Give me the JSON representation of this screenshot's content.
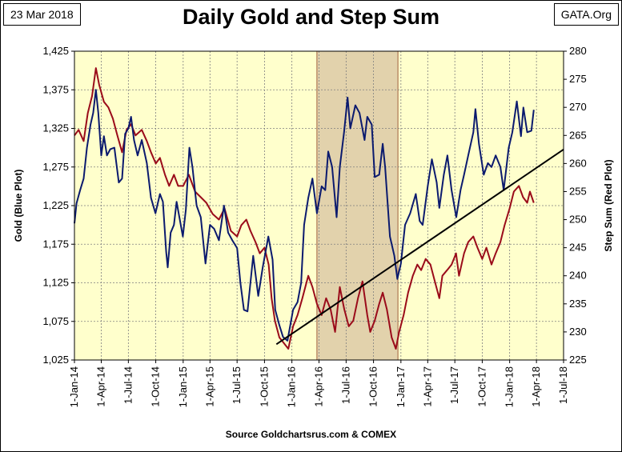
{
  "header": {
    "date": "23 Mar 2018",
    "source_tag": "GATA.Org",
    "title": "Daily Gold and Step Sum"
  },
  "footer": {
    "source_note": "Source Goldchartsrus.com & COMEX"
  },
  "colors": {
    "plot_background": "#ffffcc",
    "shaded_region": "#e2d2ac",
    "gold_series": "#0b1a6e",
    "stepsum_series": "#9a0b1a",
    "trendline": "#000000",
    "gridline": "#7f7f7f"
  },
  "chart_data": {
    "type": "line",
    "title": "Daily Gold and Step Sum",
    "xlabel": "",
    "ylabel": "Gold  (Blue Plot)",
    "ylabel_right": "Step Sum  (Red Plot)",
    "x_range": [
      "2014-01-01",
      "2018-07-01"
    ],
    "x_tick_labels": [
      "1-Jan-14",
      "1-Apr-14",
      "1-Jul-14",
      "1-Oct-14",
      "1-Jan-15",
      "1-Apr-15",
      "1-Jul-15",
      "1-Oct-15",
      "1-Jan-16",
      "1-Apr-16",
      "1-Jul-16",
      "1-Oct-16",
      "1-Jan-17",
      "1-Apr-17",
      "1-Jul-17",
      "1-Oct-17",
      "1-Jan-18",
      "1-Apr-18",
      "1-Jul-18"
    ],
    "y_left": {
      "min": 1025,
      "max": 1425,
      "ticks": [
        1025,
        1075,
        1125,
        1175,
        1225,
        1275,
        1325,
        1375,
        1425
      ],
      "tick_labels": [
        "1,025",
        "1,075",
        "1,125",
        "1,175",
        "1,225",
        "1,275",
        "1,325",
        "1,375",
        "1,425"
      ]
    },
    "y_right": {
      "min": 225,
      "max": 280,
      "ticks": [
        225,
        230,
        235,
        240,
        245,
        250,
        255,
        260,
        265,
        270,
        275,
        280
      ],
      "tick_labels": [
        "225",
        "230",
        "235",
        "240",
        "245",
        "250",
        "255",
        "260",
        "265",
        "270",
        "275",
        "280"
      ]
    },
    "grid": true,
    "shaded_period": {
      "start": "2016-03-25",
      "end": "2016-12-22"
    },
    "trendline": {
      "axis": "right",
      "points": [
        {
          "x": "2015-11-10",
          "y": 227.8
        },
        {
          "x": "2018-07-01",
          "y": 262.5
        }
      ]
    },
    "series": [
      {
        "name": "Gold",
        "axis": "left",
        "color": "#0b1a6e",
        "points": [
          [
            "2014-01-01",
            1202
          ],
          [
            "2014-01-08",
            1228
          ],
          [
            "2014-01-20",
            1245
          ],
          [
            "2014-02-01",
            1260
          ],
          [
            "2014-02-12",
            1300
          ],
          [
            "2014-02-24",
            1330
          ],
          [
            "2014-03-05",
            1345
          ],
          [
            "2014-03-14",
            1375
          ],
          [
            "2014-03-22",
            1345
          ],
          [
            "2014-04-01",
            1290
          ],
          [
            "2014-04-10",
            1315
          ],
          [
            "2014-04-20",
            1290
          ],
          [
            "2014-05-01",
            1298
          ],
          [
            "2014-05-15",
            1300
          ],
          [
            "2014-05-30",
            1255
          ],
          [
            "2014-06-10",
            1260
          ],
          [
            "2014-06-20",
            1318
          ],
          [
            "2014-07-01",
            1325
          ],
          [
            "2014-07-10",
            1340
          ],
          [
            "2014-07-20",
            1310
          ],
          [
            "2014-08-01",
            1290
          ],
          [
            "2014-08-15",
            1310
          ],
          [
            "2014-09-01",
            1280
          ],
          [
            "2014-09-15",
            1235
          ],
          [
            "2014-09-30",
            1215
          ],
          [
            "2014-10-15",
            1240
          ],
          [
            "2014-10-25",
            1230
          ],
          [
            "2014-11-05",
            1165
          ],
          [
            "2014-11-10",
            1145
          ],
          [
            "2014-11-20",
            1190
          ],
          [
            "2014-12-01",
            1200
          ],
          [
            "2014-12-10",
            1230
          ],
          [
            "2014-12-31",
            1185
          ],
          [
            "2015-01-10",
            1220
          ],
          [
            "2015-01-22",
            1300
          ],
          [
            "2015-02-01",
            1275
          ],
          [
            "2015-02-15",
            1225
          ],
          [
            "2015-03-01",
            1210
          ],
          [
            "2015-03-17",
            1150
          ],
          [
            "2015-04-01",
            1200
          ],
          [
            "2015-04-15",
            1195
          ],
          [
            "2015-05-01",
            1180
          ],
          [
            "2015-05-18",
            1225
          ],
          [
            "2015-06-01",
            1190
          ],
          [
            "2015-06-15",
            1180
          ],
          [
            "2015-07-01",
            1170
          ],
          [
            "2015-07-12",
            1125
          ],
          [
            "2015-07-24",
            1090
          ],
          [
            "2015-08-05",
            1088
          ],
          [
            "2015-08-24",
            1160
          ],
          [
            "2015-09-10",
            1108
          ],
          [
            "2015-09-25",
            1145
          ],
          [
            "2015-10-14",
            1185
          ],
          [
            "2015-10-28",
            1155
          ],
          [
            "2015-11-06",
            1090
          ],
          [
            "2015-11-20",
            1070
          ],
          [
            "2015-12-02",
            1055
          ],
          [
            "2015-12-17",
            1050
          ],
          [
            "2016-01-05",
            1090
          ],
          [
            "2016-01-20",
            1100
          ],
          [
            "2016-02-01",
            1125
          ],
          [
            "2016-02-11",
            1200
          ],
          [
            "2016-02-25",
            1235
          ],
          [
            "2016-03-10",
            1260
          ],
          [
            "2016-03-25",
            1215
          ],
          [
            "2016-04-10",
            1250
          ],
          [
            "2016-04-22",
            1245
          ],
          [
            "2016-05-02",
            1295
          ],
          [
            "2016-05-15",
            1275
          ],
          [
            "2016-05-30",
            1210
          ],
          [
            "2016-06-10",
            1275
          ],
          [
            "2016-06-24",
            1320
          ],
          [
            "2016-07-06",
            1365
          ],
          [
            "2016-07-15",
            1325
          ],
          [
            "2016-08-01",
            1355
          ],
          [
            "2016-08-15",
            1345
          ],
          [
            "2016-09-01",
            1310
          ],
          [
            "2016-09-10",
            1340
          ],
          [
            "2016-09-25",
            1330
          ],
          [
            "2016-10-05",
            1262
          ],
          [
            "2016-10-20",
            1265
          ],
          [
            "2016-11-01",
            1305
          ],
          [
            "2016-11-09",
            1275
          ],
          [
            "2016-11-25",
            1185
          ],
          [
            "2016-12-10",
            1160
          ],
          [
            "2016-12-20",
            1130
          ],
          [
            "2017-01-01",
            1150
          ],
          [
            "2017-01-15",
            1200
          ],
          [
            "2017-02-01",
            1215
          ],
          [
            "2017-02-20",
            1240
          ],
          [
            "2017-03-05",
            1205
          ],
          [
            "2017-03-15",
            1200
          ],
          [
            "2017-04-01",
            1250
          ],
          [
            "2017-04-15",
            1285
          ],
          [
            "2017-05-01",
            1255
          ],
          [
            "2017-05-10",
            1222
          ],
          [
            "2017-05-25",
            1265
          ],
          [
            "2017-06-06",
            1290
          ],
          [
            "2017-06-20",
            1245
          ],
          [
            "2017-07-06",
            1210
          ],
          [
            "2017-07-20",
            1245
          ],
          [
            "2017-08-01",
            1265
          ],
          [
            "2017-08-15",
            1290
          ],
          [
            "2017-09-01",
            1320
          ],
          [
            "2017-09-08",
            1350
          ],
          [
            "2017-09-20",
            1305
          ],
          [
            "2017-10-06",
            1265
          ],
          [
            "2017-10-20",
            1280
          ],
          [
            "2017-11-01",
            1275
          ],
          [
            "2017-11-15",
            1290
          ],
          [
            "2017-12-01",
            1275
          ],
          [
            "2017-12-12",
            1245
          ],
          [
            "2017-12-29",
            1300
          ],
          [
            "2018-01-10",
            1320
          ],
          [
            "2018-01-25",
            1360
          ],
          [
            "2018-02-08",
            1315
          ],
          [
            "2018-02-16",
            1352
          ],
          [
            "2018-03-01",
            1320
          ],
          [
            "2018-03-15",
            1322
          ],
          [
            "2018-03-23",
            1349
          ]
        ]
      },
      {
        "name": "Step Sum",
        "axis": "right",
        "color": "#9a0b1a",
        "points": [
          [
            "2014-01-01",
            265
          ],
          [
            "2014-01-15",
            266
          ],
          [
            "2014-02-01",
            264
          ],
          [
            "2014-02-15",
            269
          ],
          [
            "2014-03-01",
            272
          ],
          [
            "2014-03-14",
            277
          ],
          [
            "2014-03-25",
            274
          ],
          [
            "2014-04-10",
            271
          ],
          [
            "2014-04-25",
            270
          ],
          [
            "2014-05-10",
            268
          ],
          [
            "2014-05-25",
            265
          ],
          [
            "2014-06-10",
            262
          ],
          [
            "2014-06-25",
            266
          ],
          [
            "2014-07-10",
            267
          ],
          [
            "2014-07-25",
            265
          ],
          [
            "2014-08-15",
            266
          ],
          [
            "2014-09-01",
            264
          ],
          [
            "2014-09-15",
            262
          ],
          [
            "2014-10-01",
            260
          ],
          [
            "2014-10-15",
            261
          ],
          [
            "2014-11-01",
            258
          ],
          [
            "2014-11-15",
            256
          ],
          [
            "2014-12-01",
            258
          ],
          [
            "2014-12-15",
            256
          ],
          [
            "2015-01-01",
            256
          ],
          [
            "2015-01-20",
            258
          ],
          [
            "2015-02-10",
            255
          ],
          [
            "2015-03-01",
            254
          ],
          [
            "2015-03-20",
            253
          ],
          [
            "2015-04-10",
            251
          ],
          [
            "2015-05-01",
            250
          ],
          [
            "2015-05-20",
            252
          ],
          [
            "2015-06-10",
            248
          ],
          [
            "2015-07-01",
            247
          ],
          [
            "2015-07-15",
            249
          ],
          [
            "2015-08-01",
            250
          ],
          [
            "2015-08-15",
            248
          ],
          [
            "2015-09-01",
            246
          ],
          [
            "2015-09-15",
            244
          ],
          [
            "2015-10-01",
            245
          ],
          [
            "2015-10-15",
            242
          ],
          [
            "2015-10-25",
            236
          ],
          [
            "2015-11-05",
            232
          ],
          [
            "2015-11-20",
            229
          ],
          [
            "2015-12-05",
            228
          ],
          [
            "2015-12-20",
            227
          ],
          [
            "2016-01-05",
            231
          ],
          [
            "2016-01-20",
            233
          ],
          [
            "2016-02-05",
            236
          ],
          [
            "2016-02-25",
            240
          ],
          [
            "2016-03-10",
            238
          ],
          [
            "2016-03-25",
            235
          ],
          [
            "2016-04-10",
            233
          ],
          [
            "2016-04-25",
            236
          ],
          [
            "2016-05-10",
            234
          ],
          [
            "2016-05-25",
            230
          ],
          [
            "2016-06-10",
            238
          ],
          [
            "2016-06-25",
            234
          ],
          [
            "2016-07-10",
            231
          ],
          [
            "2016-07-25",
            232
          ],
          [
            "2016-08-10",
            236
          ],
          [
            "2016-08-25",
            239
          ],
          [
            "2016-09-10",
            233
          ],
          [
            "2016-09-20",
            230
          ],
          [
            "2016-10-05",
            232
          ],
          [
            "2016-10-20",
            235
          ],
          [
            "2016-11-01",
            237
          ],
          [
            "2016-11-15",
            234
          ],
          [
            "2016-12-01",
            229
          ],
          [
            "2016-12-15",
            227
          ],
          [
            "2016-12-26",
            230
          ],
          [
            "2017-01-10",
            233
          ],
          [
            "2017-01-25",
            237
          ],
          [
            "2017-02-10",
            240
          ],
          [
            "2017-02-25",
            242
          ],
          [
            "2017-03-10",
            241
          ],
          [
            "2017-03-25",
            243
          ],
          [
            "2017-04-10",
            242
          ],
          [
            "2017-04-25",
            239
          ],
          [
            "2017-05-10",
            236
          ],
          [
            "2017-05-20",
            240
          ],
          [
            "2017-06-05",
            241
          ],
          [
            "2017-06-20",
            242
          ],
          [
            "2017-07-05",
            244
          ],
          [
            "2017-07-15",
            240
          ],
          [
            "2017-08-01",
            244
          ],
          [
            "2017-08-15",
            246
          ],
          [
            "2017-09-01",
            247
          ],
          [
            "2017-09-15",
            245
          ],
          [
            "2017-10-01",
            243
          ],
          [
            "2017-10-15",
            245
          ],
          [
            "2017-11-01",
            242
          ],
          [
            "2017-11-15",
            244
          ],
          [
            "2017-12-01",
            246
          ],
          [
            "2017-12-15",
            249
          ],
          [
            "2018-01-01",
            252
          ],
          [
            "2018-01-15",
            255
          ],
          [
            "2018-02-01",
            256
          ],
          [
            "2018-02-15",
            254
          ],
          [
            "2018-03-01",
            253
          ],
          [
            "2018-03-10",
            255
          ],
          [
            "2018-03-23",
            253
          ]
        ]
      }
    ]
  }
}
